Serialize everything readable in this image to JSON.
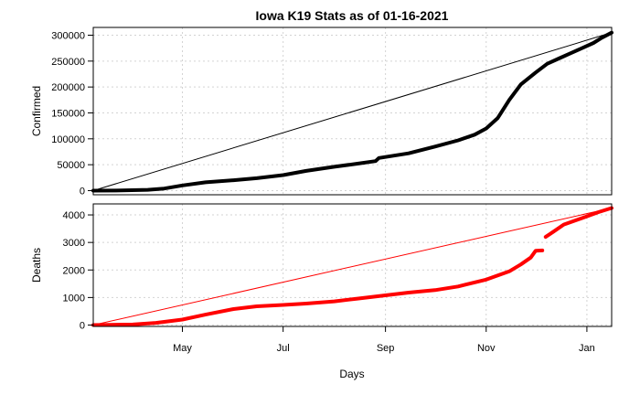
{
  "chart_data": {
    "type": "line",
    "title": "Iowa K19 Stats as of 01-16-2021",
    "xlabel": "Days",
    "x_range": [
      "2020-03-08",
      "2021-01-16"
    ],
    "x_ticks": [
      {
        "date": "2020-05-01",
        "label": "May"
      },
      {
        "date": "2020-07-01",
        "label": "Jul"
      },
      {
        "date": "2020-09-01",
        "label": "Sep"
      },
      {
        "date": "2020-11-01",
        "label": "Nov"
      },
      {
        "date": "2021-01-01",
        "label": "Jan"
      }
    ],
    "grid": true,
    "panels": [
      {
        "ylabel": "Confirmed",
        "ylim": [
          -8000,
          315000
        ],
        "y_ticks": [
          0,
          50000,
          100000,
          150000,
          200000,
          250000,
          300000
        ],
        "color": "#000000",
        "x": [
          "2020-03-08",
          "2020-03-25",
          "2020-04-10",
          "2020-04-20",
          "2020-05-01",
          "2020-05-15",
          "2020-06-01",
          "2020-06-15",
          "2020-07-01",
          "2020-07-15",
          "2020-08-01",
          "2020-08-15",
          "2020-08-26",
          "2020-08-28",
          "2020-09-15",
          "2020-10-01",
          "2020-10-15",
          "2020-10-25",
          "2020-11-01",
          "2020-11-08",
          "2020-11-15",
          "2020-11-22",
          "2020-12-01",
          "2020-12-08",
          "2020-12-15",
          "2020-12-22",
          "2020-12-29",
          "2021-01-05",
          "2021-01-10",
          "2021-01-16"
        ],
        "values": [
          0,
          300,
          1500,
          4000,
          10000,
          16000,
          20000,
          24000,
          30000,
          38000,
          46000,
          52000,
          57000,
          63000,
          72000,
          85000,
          97000,
          108000,
          120000,
          140000,
          175000,
          205000,
          228000,
          245000,
          255000,
          265000,
          275000,
          285000,
          295000,
          305000
        ],
        "reference_line": {
          "from": [
            "2020-03-08",
            0
          ],
          "to": [
            "2021-01-16",
            305000
          ]
        }
      },
      {
        "ylabel": "Deaths",
        "ylim": [
          -50,
          4400
        ],
        "y_ticks": [
          0,
          1000,
          2000,
          3000,
          4000
        ],
        "color": "#ff0000",
        "segments": [
          {
            "x": [
              "2020-03-08",
              "2020-04-01",
              "2020-04-15",
              "2020-05-01",
              "2020-05-15",
              "2020-06-01",
              "2020-06-15",
              "2020-07-01",
              "2020-07-15",
              "2020-08-01",
              "2020-08-15",
              "2020-09-01",
              "2020-09-15",
              "2020-10-01",
              "2020-10-15",
              "2020-11-01",
              "2020-11-15",
              "2020-11-22",
              "2020-11-28",
              "2020-12-01",
              "2020-12-05"
            ],
            "values": [
              0,
              20,
              80,
              200,
              380,
              580,
              680,
              730,
              780,
              860,
              960,
              1080,
              1180,
              1270,
              1400,
              1650,
              1950,
              2200,
              2450,
              2700,
              2710
            ]
          },
          {
            "x": [
              "2020-12-07",
              "2020-12-12",
              "2020-12-18",
              "2020-12-25",
              "2021-01-01",
              "2021-01-08",
              "2021-01-16"
            ],
            "values": [
              3200,
              3400,
              3650,
              3800,
              3950,
              4100,
              4250
            ]
          }
        ],
        "reference_line": {
          "from": [
            "2020-03-08",
            0
          ],
          "to": [
            "2021-01-16",
            4250
          ]
        }
      }
    ]
  }
}
